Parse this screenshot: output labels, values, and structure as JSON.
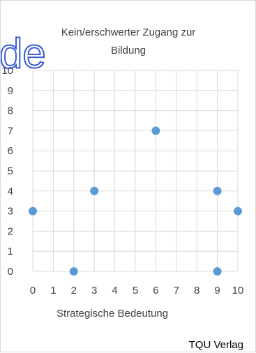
{
  "chart_data": {
    "type": "scatter",
    "title": [
      "Kein/erschwerter Zugang zur",
      "Bildung"
    ],
    "xlabel": "Strategische Bedeutung",
    "ylabel": "",
    "xlim": [
      0,
      10
    ],
    "ylim": [
      0,
      10
    ],
    "xticks": [
      "0",
      "1",
      "2",
      "3",
      "4",
      "5",
      "6",
      "7",
      "8",
      "9",
      "10"
    ],
    "yticks": [
      "0",
      "1",
      "2",
      "3",
      "4",
      "5",
      "6",
      "7",
      "8",
      "9",
      "10"
    ],
    "grid": true,
    "points": [
      {
        "x": 0,
        "y": 3
      },
      {
        "x": 2,
        "y": 0
      },
      {
        "x": 3,
        "y": 4
      },
      {
        "x": 6,
        "y": 7
      },
      {
        "x": 9,
        "y": 4
      },
      {
        "x": 9,
        "y": 0
      },
      {
        "x": 10,
        "y": 3
      }
    ],
    "marker_color": "#5b9bd5",
    "grid_color": "#d9d9d9"
  },
  "wordmark": "de",
  "wordmark_color": "#3a5bd9",
  "publisher": "TQU Verlag"
}
